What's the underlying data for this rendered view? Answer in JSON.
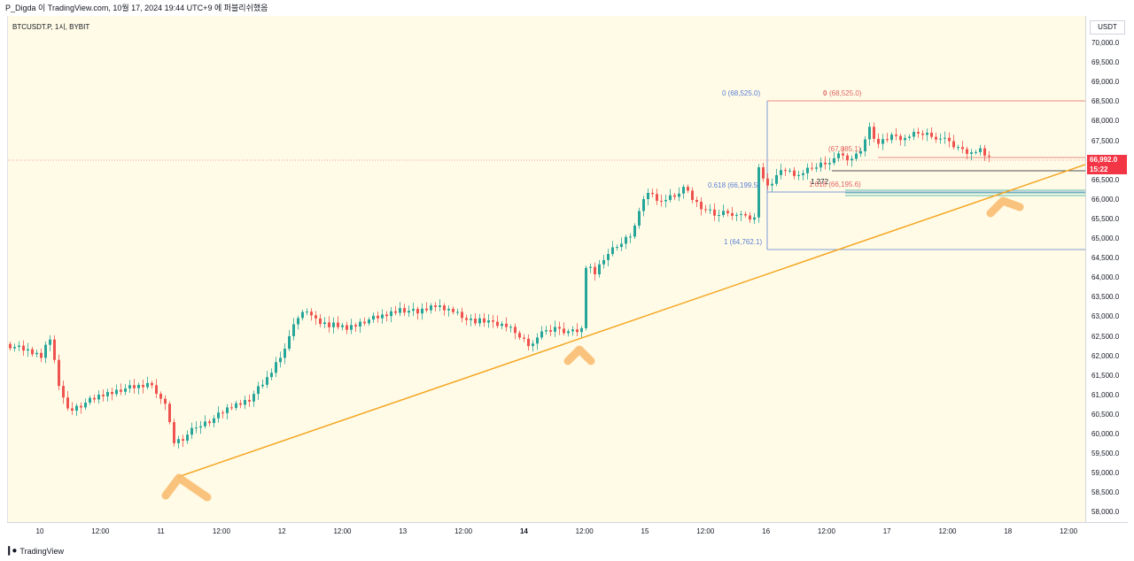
{
  "header": {
    "text": "P_Digda 이 TradingView.com, 10월 17, 2024 19:44 UTC+9 에 퍼블리쉬했음"
  },
  "chart": {
    "symbol": "BTCUSDT.P, 1시, BYBIT",
    "currency": "USDT",
    "last_price": "66,992.0",
    "countdown": "15:22",
    "colors": {
      "up": "#26a69a",
      "down": "#ef5350",
      "trendline": "#f5a623",
      "fib_blue": "#5b7fd6",
      "fib_red": "#e06666",
      "background": "#fffbe6",
      "price_tag": "#f23645"
    }
  },
  "price_ticks": [
    "70,000.0",
    "69,500.0",
    "69,000.0",
    "68,500.0",
    "68,000.0",
    "67,500.0",
    "67,000.0",
    "66,500.0",
    "66,000.0",
    "65,500.0",
    "65,000.0",
    "64,500.0",
    "64,000.0",
    "63,500.0",
    "63,000.0",
    "62,500.0",
    "62,000.0",
    "61,500.0",
    "61,000.0",
    "60,500.0",
    "60,000.0",
    "59,500.0",
    "59,000.0",
    "58,500.0",
    "58,000.0"
  ],
  "time_ticks": [
    {
      "label": "10",
      "bold": false
    },
    {
      "label": "12:00",
      "bold": false
    },
    {
      "label": "11",
      "bold": false
    },
    {
      "label": "12:00",
      "bold": false
    },
    {
      "label": "12",
      "bold": false
    },
    {
      "label": "12:00",
      "bold": false
    },
    {
      "label": "13",
      "bold": false
    },
    {
      "label": "12:00",
      "bold": false
    },
    {
      "label": "14",
      "bold": true
    },
    {
      "label": "12:00",
      "bold": false
    },
    {
      "label": "15",
      "bold": false
    },
    {
      "label": "12:00",
      "bold": false
    },
    {
      "label": "16",
      "bold": false
    },
    {
      "label": "12:00",
      "bold": false
    },
    {
      "label": "17",
      "bold": false
    },
    {
      "label": "12:00",
      "bold": false
    },
    {
      "label": "18",
      "bold": false
    },
    {
      "label": "12:00",
      "bold": false
    }
  ],
  "fib_left": {
    "level_0": "0 (68,525.0)",
    "level_618": "0.618 (66,199.5)",
    "level_1": "1 (64,762.1)"
  },
  "fib_right": {
    "level_0_key": "0",
    "level_0_val": "(68,525.0)",
    "level_mid": "(67,085.1)",
    "level_1272": "1.272",
    "level_1618": "1.618 (66,195.6)"
  },
  "footer": {
    "brand": "TradingView"
  }
}
